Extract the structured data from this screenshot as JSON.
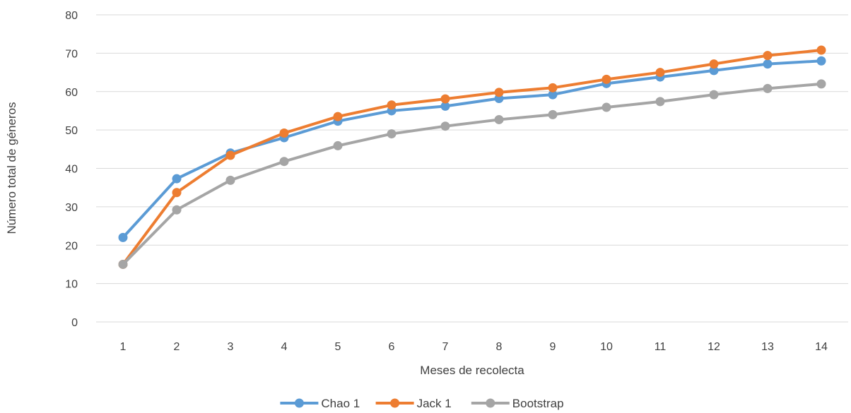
{
  "chart_data": {
    "type": "line",
    "title": "",
    "xlabel": "Meses de recolecta",
    "ylabel": "Número total de géneros",
    "x": [
      1,
      2,
      3,
      4,
      5,
      6,
      7,
      8,
      9,
      10,
      11,
      12,
      13,
      14
    ],
    "ylim": [
      0,
      80
    ],
    "yticks": [
      0,
      10,
      20,
      30,
      40,
      50,
      60,
      70,
      80
    ],
    "grid": true,
    "legend_position": "bottom",
    "series": [
      {
        "name": "Chao 1",
        "color": "#5B9BD5",
        "values": [
          22,
          37.3,
          44,
          48,
          52.3,
          55,
          56.2,
          58.2,
          59.2,
          62.1,
          63.8,
          65.5,
          67.2,
          68
        ]
      },
      {
        "name": "Jack 1",
        "color": "#ED7D31",
        "values": [
          15,
          33.7,
          43.4,
          49.2,
          53.5,
          56.5,
          58.1,
          59.8,
          61,
          63.2,
          65,
          67.2,
          69.4,
          70.8
        ]
      },
      {
        "name": "Bootstrap",
        "color": "#A5A5A5",
        "values": [
          15,
          29.2,
          36.9,
          41.8,
          45.9,
          49,
          51,
          52.7,
          54,
          55.9,
          57.4,
          59.2,
          60.8,
          62
        ]
      }
    ]
  }
}
